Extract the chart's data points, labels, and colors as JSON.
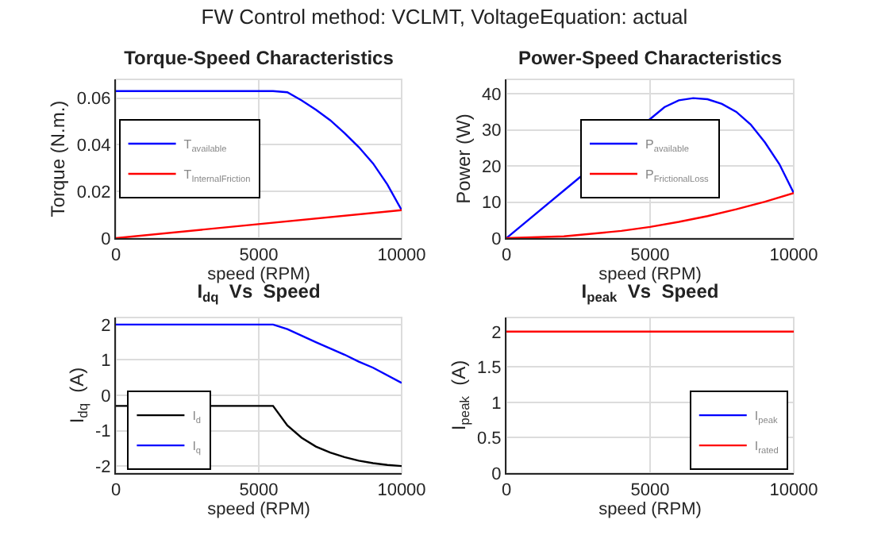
{
  "chart_data": [
    {
      "type": "line",
      "title": "Torque-Speed Characteristics",
      "xlabel": "speed (RPM)",
      "ylabel": "Torque (N.m.)",
      "annotations": [
        "FW Control method: VCLMT, VoltageEquation: actual"
      ],
      "xlim": [
        0,
        10000
      ],
      "xticks": [
        0,
        5000,
        10000
      ],
      "ylim": [
        0,
        0.068
      ],
      "yticks": [
        0,
        0.02,
        0.04,
        0.06
      ],
      "grid": true,
      "legend": "left",
      "series": [
        {
          "name": "T$_{available}$",
          "color": "#0000ff",
          "x": [
            0,
            1000,
            2000,
            3000,
            4000,
            5000,
            5500,
            6000,
            6500,
            7000,
            7500,
            8000,
            8500,
            9000,
            9500,
            10000
          ],
          "values": [
            0.063,
            0.063,
            0.063,
            0.063,
            0.063,
            0.063,
            0.063,
            0.0625,
            0.059,
            0.055,
            0.0505,
            0.045,
            0.039,
            0.032,
            0.023,
            0.012
          ]
        },
        {
          "name": "T$_{InternalFriction}$",
          "color": "#ff0000",
          "x": [
            0,
            10000
          ],
          "values": [
            0,
            0.012
          ]
        }
      ]
    },
    {
      "type": "line",
      "title": "Power-Speed Characteristics",
      "xlabel": "speed (RPM)",
      "ylabel": "Power (W)",
      "xlim": [
        0,
        10000
      ],
      "xticks": [
        0,
        5000,
        10000
      ],
      "ylim": [
        0,
        44
      ],
      "yticks": [
        0,
        10,
        20,
        30,
        40
      ],
      "grid": true,
      "legend": "center",
      "series": [
        {
          "name": "P$_{available}$",
          "color": "#0000ff",
          "x": [
            0,
            2000,
            5000,
            5500,
            6000,
            6500,
            7000,
            7500,
            8000,
            8500,
            9000,
            9500,
            10000
          ],
          "values": [
            0,
            13.2,
            33,
            36.3,
            38.2,
            38.8,
            38.5,
            37.2,
            35,
            31.5,
            26.5,
            20.5,
            12.5
          ]
        },
        {
          "name": "P$_{FrictionalLoss}$",
          "color": "#ff0000",
          "x": [
            0,
            2000,
            4000,
            5000,
            6000,
            7000,
            8000,
            9000,
            10000
          ],
          "values": [
            0,
            0.5,
            2,
            3.1,
            4.5,
            6.1,
            8,
            10.1,
            12.5
          ]
        }
      ]
    },
    {
      "type": "line",
      "title": "I$_{dq}$  Vs  Speed",
      "xlabel": "speed (RPM)",
      "ylabel": "I$_{dq}$  (A)",
      "xlim": [
        0,
        10000
      ],
      "xticks": [
        0,
        5000,
        10000
      ],
      "ylim": [
        -2.2,
        2.2
      ],
      "yticks": [
        -2,
        -1,
        0,
        1,
        2
      ],
      "grid": true,
      "legend": "bottom left",
      "series": [
        {
          "name": "I$_{d}$",
          "color": "#000000",
          "x": [
            0,
            5000,
            5500,
            6000,
            6500,
            7000,
            7500,
            8000,
            8500,
            9000,
            9500,
            10000
          ],
          "values": [
            -0.3,
            -0.3,
            -0.3,
            -0.85,
            -1.2,
            -1.45,
            -1.62,
            -1.75,
            -1.85,
            -1.92,
            -1.97,
            -2.0
          ]
        },
        {
          "name": "I$_{q}$",
          "color": "#0000ff",
          "x": [
            0,
            5000,
            5500,
            6000,
            7000,
            8000,
            8500,
            9000,
            10000
          ],
          "values": [
            2,
            2,
            2,
            1.87,
            1.5,
            1.15,
            0.95,
            0.78,
            0.35
          ]
        }
      ]
    },
    {
      "type": "line",
      "title": "I$_{peak}$  Vs  Speed",
      "xlabel": "speed (RPM)",
      "ylabel": "I$_{peak}$  (A)",
      "xlim": [
        0,
        10000
      ],
      "xticks": [
        0,
        5000,
        10000
      ],
      "ylim": [
        0,
        2.2
      ],
      "yticks": [
        0,
        0.5,
        1,
        1.5,
        2
      ],
      "grid": true,
      "legend": "bottom right",
      "series": [
        {
          "name": "I$_{peak}$",
          "color": "#0000ff"
        },
        {
          "name": "I$_{rated}$",
          "color": "#ff0000",
          "x": [
            0,
            10000
          ],
          "values": [
            2,
            2
          ]
        }
      ]
    }
  ]
}
